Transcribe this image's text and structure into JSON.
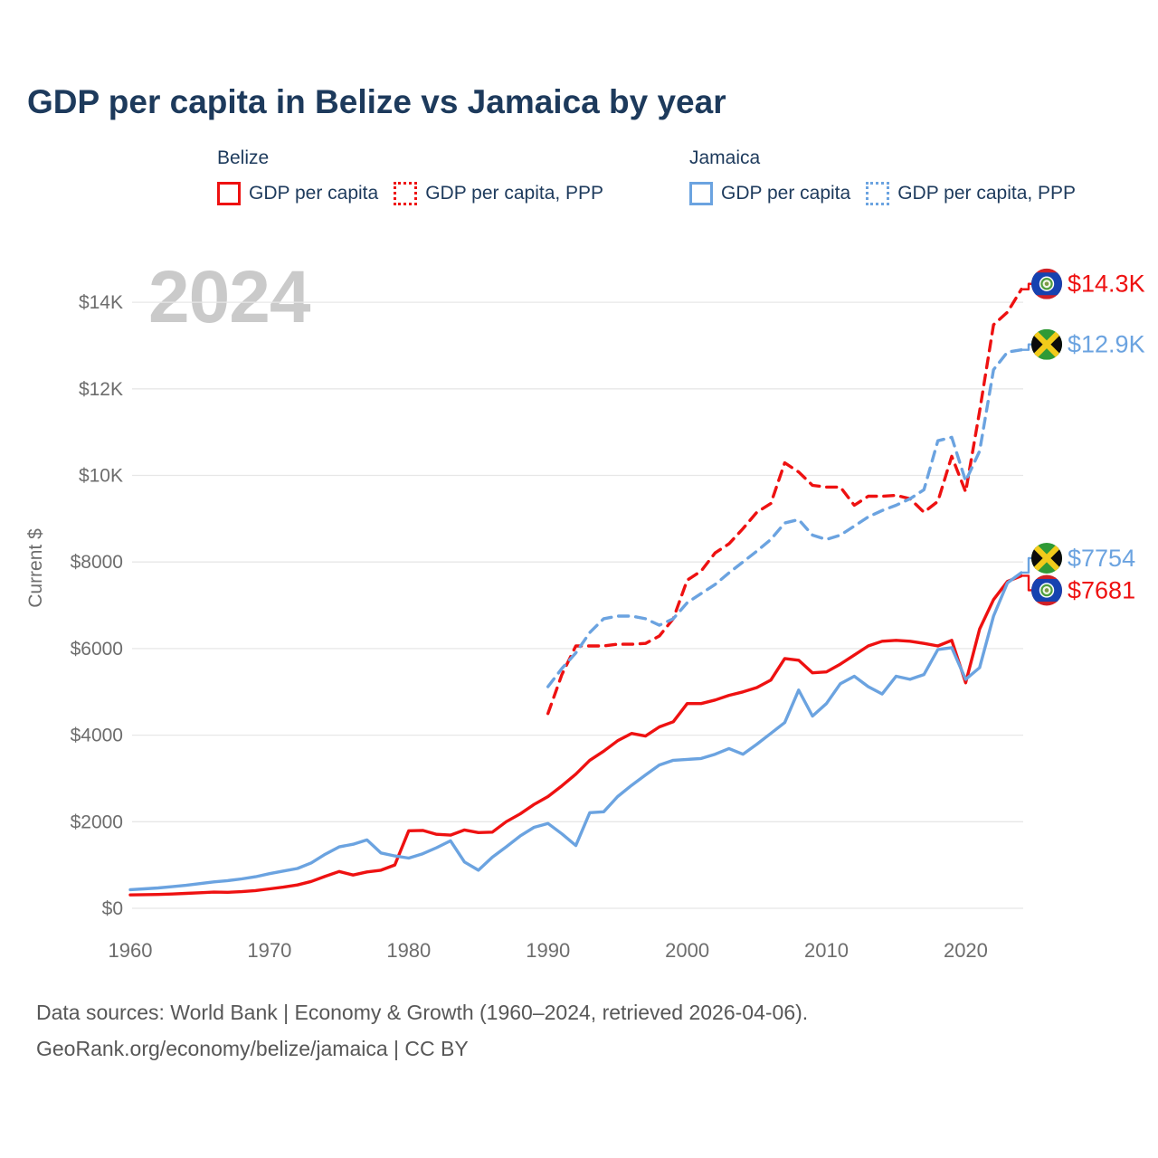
{
  "title": "GDP per capita in Belize vs Jamaica by year",
  "watermark": "2024",
  "legend": {
    "groups": [
      {
        "label": "Belize",
        "items": [
          {
            "label": "GDP per capita",
            "style": "solid",
            "color": "#ee1111"
          },
          {
            "label": "GDP per capita, PPP",
            "style": "dotted",
            "color": "#ee1111"
          }
        ]
      },
      {
        "label": "Jamaica",
        "items": [
          {
            "label": "GDP per capita",
            "style": "solid",
            "color": "#6ba3e0"
          },
          {
            "label": "GDP per capita, PPP",
            "style": "dotted",
            "color": "#6ba3e0"
          }
        ]
      }
    ]
  },
  "chart_data": {
    "type": "line",
    "title": "GDP per capita in Belize vs Jamaica by year",
    "xlabel": "",
    "ylabel": "Current $",
    "xlim": [
      1960,
      2024
    ],
    "ylim": [
      0,
      15000
    ],
    "grid": "horizontal",
    "legend_position": "top",
    "x_ticks": [
      "1960",
      "1970",
      "1980",
      "1990",
      "2000",
      "2010",
      "2020"
    ],
    "y_ticks": [
      {
        "value": 0,
        "label": "$0"
      },
      {
        "value": 2000,
        "label": "$2000"
      },
      {
        "value": 4000,
        "label": "$4000"
      },
      {
        "value": 6000,
        "label": "$6000"
      },
      {
        "value": 8000,
        "label": "$8000"
      },
      {
        "value": 10000,
        "label": "$10K"
      },
      {
        "value": 12000,
        "label": "$12K"
      },
      {
        "value": 14000,
        "label": "$14K"
      }
    ],
    "series": [
      {
        "name": "Belize GDP per capita",
        "country": "Belize",
        "color": "#ee1111",
        "dash": "solid",
        "start_year": 1960,
        "values": [
          310,
          315,
          320,
          330,
          345,
          360,
          375,
          370,
          385,
          410,
          450,
          490,
          540,
          620,
          740,
          850,
          770,
          840,
          880,
          1000,
          1790,
          1800,
          1710,
          1690,
          1810,
          1750,
          1760,
          2000,
          2180,
          2400,
          2580,
          2830,
          3100,
          3420,
          3630,
          3870,
          4040,
          3980,
          4190,
          4310,
          4730,
          4730,
          4810,
          4920,
          5000,
          5100,
          5270,
          5770,
          5730,
          5440,
          5460,
          5640,
          5850,
          6060,
          6170,
          6190,
          6170,
          6120,
          6060,
          6190,
          5210,
          6450,
          7130,
          7550,
          7681
        ]
      },
      {
        "name": "Belize GDP per capita, PPP",
        "country": "Belize",
        "color": "#ee1111",
        "dash": "dashed",
        "start_year": 1990,
        "values": [
          4500,
          5400,
          6060,
          6060,
          6060,
          6100,
          6100,
          6120,
          6290,
          6690,
          7580,
          7790,
          8210,
          8420,
          8770,
          9150,
          9350,
          10290,
          10080,
          9770,
          9730,
          9730,
          9310,
          9520,
          9520,
          9540,
          9460,
          9150,
          9400,
          10440,
          9620,
          11480,
          13480,
          13770,
          14300
        ]
      },
      {
        "name": "Jamaica GDP per capita",
        "country": "Jamaica",
        "color": "#6ba3e0",
        "dash": "solid",
        "start_year": 1960,
        "values": [
          430,
          450,
          470,
          500,
          530,
          570,
          610,
          640,
          680,
          730,
          800,
          860,
          920,
          1050,
          1250,
          1420,
          1480,
          1580,
          1280,
          1210,
          1160,
          1260,
          1400,
          1560,
          1070,
          880,
          1180,
          1420,
          1670,
          1870,
          1960,
          1720,
          1450,
          2210,
          2230,
          2580,
          2840,
          3080,
          3310,
          3420,
          3440,
          3460,
          3560,
          3690,
          3560,
          3790,
          4040,
          4290,
          5040,
          4440,
          4730,
          5190,
          5360,
          5120,
          4950,
          5360,
          5290,
          5400,
          5980,
          6020,
          5290,
          5560,
          6750,
          7520,
          7754
        ]
      },
      {
        "name": "Jamaica GDP per capita, PPP",
        "country": "Jamaica",
        "color": "#6ba3e0",
        "dash": "dashed",
        "start_year": 1990,
        "values": [
          5120,
          5540,
          5900,
          6370,
          6690,
          6750,
          6750,
          6690,
          6540,
          6690,
          7060,
          7270,
          7480,
          7750,
          8000,
          8250,
          8520,
          8900,
          8980,
          8620,
          8520,
          8620,
          8830,
          9040,
          9190,
          9310,
          9460,
          9670,
          10800,
          10880,
          9870,
          10560,
          12440,
          12850,
          12900
        ]
      }
    ],
    "end_labels": [
      {
        "text": "$14.3K",
        "series": "Belize GDP per capita, PPP",
        "flag": "belize",
        "color": "#ee1111",
        "value": 14300
      },
      {
        "text": "$12.9K",
        "series": "Jamaica GDP per capita, PPP",
        "flag": "jamaica",
        "color": "#6ba3e0",
        "value": 12900
      },
      {
        "text": "$7754",
        "series": "Jamaica GDP per capita",
        "flag": "jamaica",
        "color": "#6ba3e0",
        "value": 7754
      },
      {
        "text": "$7681",
        "series": "Belize GDP per capita",
        "flag": "belize",
        "color": "#ee1111",
        "value": 7681
      }
    ]
  },
  "footer": {
    "line1": "Data sources: World Bank | Economy & Growth (1960–2024, retrieved 2026-04-06).",
    "line2": "GeoRank.org/economy/belize/jamaica | CC BY"
  }
}
